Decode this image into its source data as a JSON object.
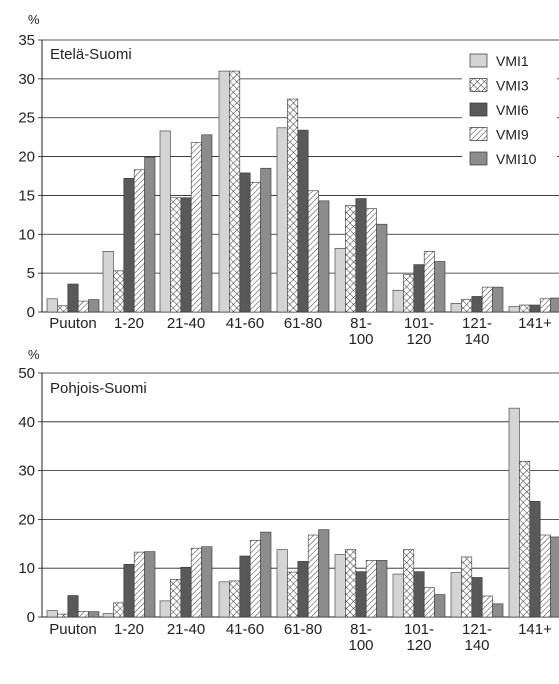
{
  "chart_data": [
    {
      "type": "bar",
      "region_label": "Etelä-Suomi",
      "ylabel": "%",
      "ylim": [
        0,
        35
      ],
      "yticks": [
        0,
        5,
        10,
        15,
        20,
        25,
        30,
        35
      ],
      "grid": "horizontal",
      "categories": [
        "Puuton",
        "1-20",
        "21-40",
        "41-60",
        "61-80",
        "81-\n100",
        "101-\n120",
        "121-\n140",
        "141+"
      ],
      "series": [
        {
          "name": "VMI1",
          "values": [
            1.7,
            7.8,
            23.3,
            31.0,
            23.7,
            8.2,
            2.8,
            1.1,
            0.7
          ]
        },
        {
          "name": "VMI3",
          "values": [
            0.8,
            5.3,
            14.7,
            31.0,
            27.4,
            13.7,
            4.8,
            1.6,
            0.9
          ]
        },
        {
          "name": "VMI6",
          "values": [
            3.6,
            17.2,
            14.7,
            17.9,
            23.4,
            14.6,
            6.1,
            2.0,
            0.9
          ]
        },
        {
          "name": "VMI9",
          "values": [
            1.4,
            18.3,
            21.8,
            16.7,
            15.6,
            13.3,
            7.8,
            3.2,
            1.7
          ]
        },
        {
          "name": "VMI10",
          "values": [
            1.6,
            19.9,
            22.8,
            18.5,
            14.3,
            11.3,
            6.5,
            3.2,
            1.8
          ]
        }
      ],
      "legend_position": "top-right"
    },
    {
      "type": "bar",
      "region_label": "Pohjois-Suomi",
      "ylabel": "%",
      "ylim": [
        0,
        50
      ],
      "yticks": [
        0,
        10,
        20,
        30,
        40,
        50
      ],
      "grid": "horizontal",
      "categories": [
        "Puuton",
        "1-20",
        "21-40",
        "41-60",
        "61-80",
        "81-\n100",
        "101-\n120",
        "121-\n140",
        "141+"
      ],
      "series": [
        {
          "name": "VMI1",
          "values": [
            1.3,
            0.7,
            3.3,
            7.2,
            13.8,
            12.8,
            8.8,
            9.1,
            42.8
          ]
        },
        {
          "name": "VMI3",
          "values": [
            0.6,
            2.9,
            7.7,
            7.4,
            9.2,
            13.8,
            13.8,
            12.3,
            31.9
          ]
        },
        {
          "name": "VMI6",
          "values": [
            4.4,
            10.8,
            10.2,
            12.5,
            11.4,
            9.3,
            9.3,
            8.1,
            23.7
          ]
        },
        {
          "name": "VMI9",
          "values": [
            1.1,
            13.3,
            14.1,
            15.7,
            16.8,
            11.6,
            6.0,
            4.3,
            16.8
          ]
        },
        {
          "name": "VMI10",
          "values": [
            1.1,
            13.4,
            14.4,
            17.4,
            17.9,
            11.6,
            4.6,
            2.7,
            16.4
          ]
        }
      ]
    }
  ],
  "legend": {
    "entries": [
      "VMI1",
      "VMI3",
      "VMI6",
      "VMI9",
      "VMI10"
    ]
  },
  "style": {
    "colors": [
      "#d4d4d4",
      "#ffffff",
      "#595959",
      "#ffffff",
      "#8c8c8c"
    ],
    "patterns": [
      "solid",
      "crosshatch",
      "solid",
      "diagonal",
      "solid"
    ],
    "axis_color": "#222222",
    "grid_color": "#222222"
  }
}
